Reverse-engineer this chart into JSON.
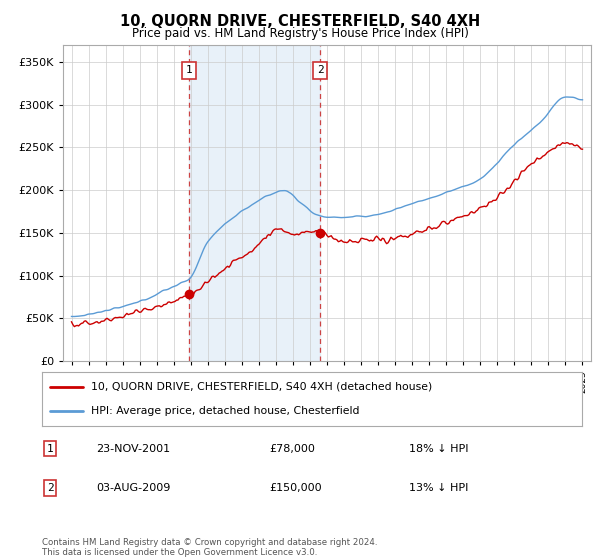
{
  "title": "10, QUORN DRIVE, CHESTERFIELD, S40 4XH",
  "subtitle": "Price paid vs. HM Land Registry's House Price Index (HPI)",
  "legend_line1": "10, QUORN DRIVE, CHESTERFIELD, S40 4XH (detached house)",
  "legend_line2": "HPI: Average price, detached house, Chesterfield",
  "transaction1_date": "23-NOV-2001",
  "transaction1_price": "£78,000",
  "transaction1_hpi": "18% ↓ HPI",
  "transaction1_year": 2001.9,
  "transaction1_value": 78000,
  "transaction2_date": "03-AUG-2009",
  "transaction2_price": "£150,000",
  "transaction2_hpi": "13% ↓ HPI",
  "transaction2_year": 2009.6,
  "transaction2_value": 150000,
  "copyright": "Contains HM Land Registry data © Crown copyright and database right 2024.\nThis data is licensed under the Open Government Licence v3.0.",
  "hpi_color": "#5b9bd5",
  "price_color": "#cc0000",
  "highlight_color": "#d9e8f5",
  "grid_color": "#cccccc",
  "background_color": "#ffffff",
  "ylim": [
    0,
    370000
  ],
  "xlim_start": 1994.5,
  "xlim_end": 2025.5
}
